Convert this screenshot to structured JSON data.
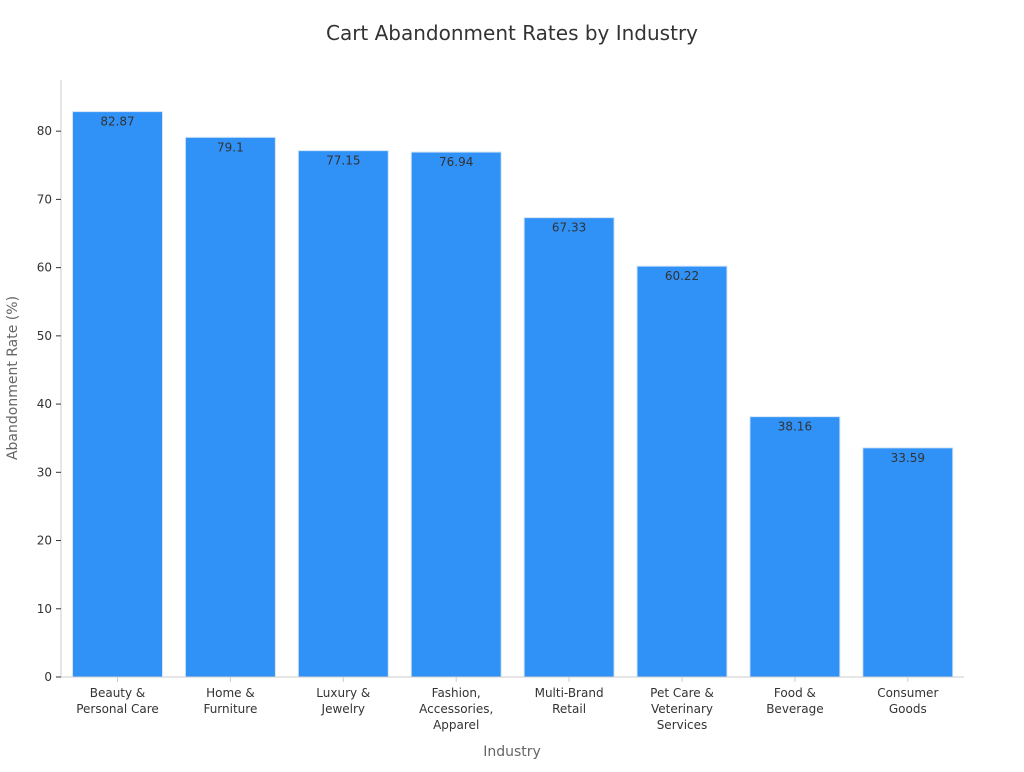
{
  "chart_data": {
    "type": "bar",
    "title": "Cart Abandonment Rates by Industry",
    "xlabel": "Industry",
    "ylabel": "Abandonment Rate (%)",
    "categories": [
      "Beauty & Personal Care",
      "Home & Furniture",
      "Luxury & Jewelry",
      "Fashion, Accessories, Apparel",
      "Multi-Brand Retail",
      "Pet Care & Veterinary Services",
      "Food & Beverage",
      "Consumer Goods"
    ],
    "category_lines": [
      [
        "Beauty &",
        "Personal Care"
      ],
      [
        "Home &",
        "Furniture"
      ],
      [
        "Luxury &",
        "Jewelry"
      ],
      [
        "Fashion,",
        "Accessories,",
        "Apparel"
      ],
      [
        "Multi-Brand",
        "Retail"
      ],
      [
        "Pet Care &",
        "Veterinary",
        "Services"
      ],
      [
        "Food &",
        "Beverage"
      ],
      [
        "Consumer",
        "Goods"
      ]
    ],
    "values": [
      82.87,
      79.1,
      77.15,
      76.94,
      67.33,
      60.22,
      38.16,
      33.59
    ],
    "value_labels": [
      "82.87",
      "79.1",
      "77.15",
      "76.94",
      "67.33",
      "60.22",
      "38.16",
      "33.59"
    ],
    "ylim": [
      0,
      87.5
    ],
    "yticks": [
      0,
      10,
      20,
      30,
      40,
      50,
      60,
      70,
      80
    ],
    "grid": false,
    "legend": "none",
    "colors": {
      "bar": "#3092f7",
      "bar_edge": "#d6e6f5",
      "axis": "#cccccc",
      "title": "#333333",
      "axis_label": "#666666",
      "tick_label": "#333333",
      "value_label": "#333333"
    }
  }
}
